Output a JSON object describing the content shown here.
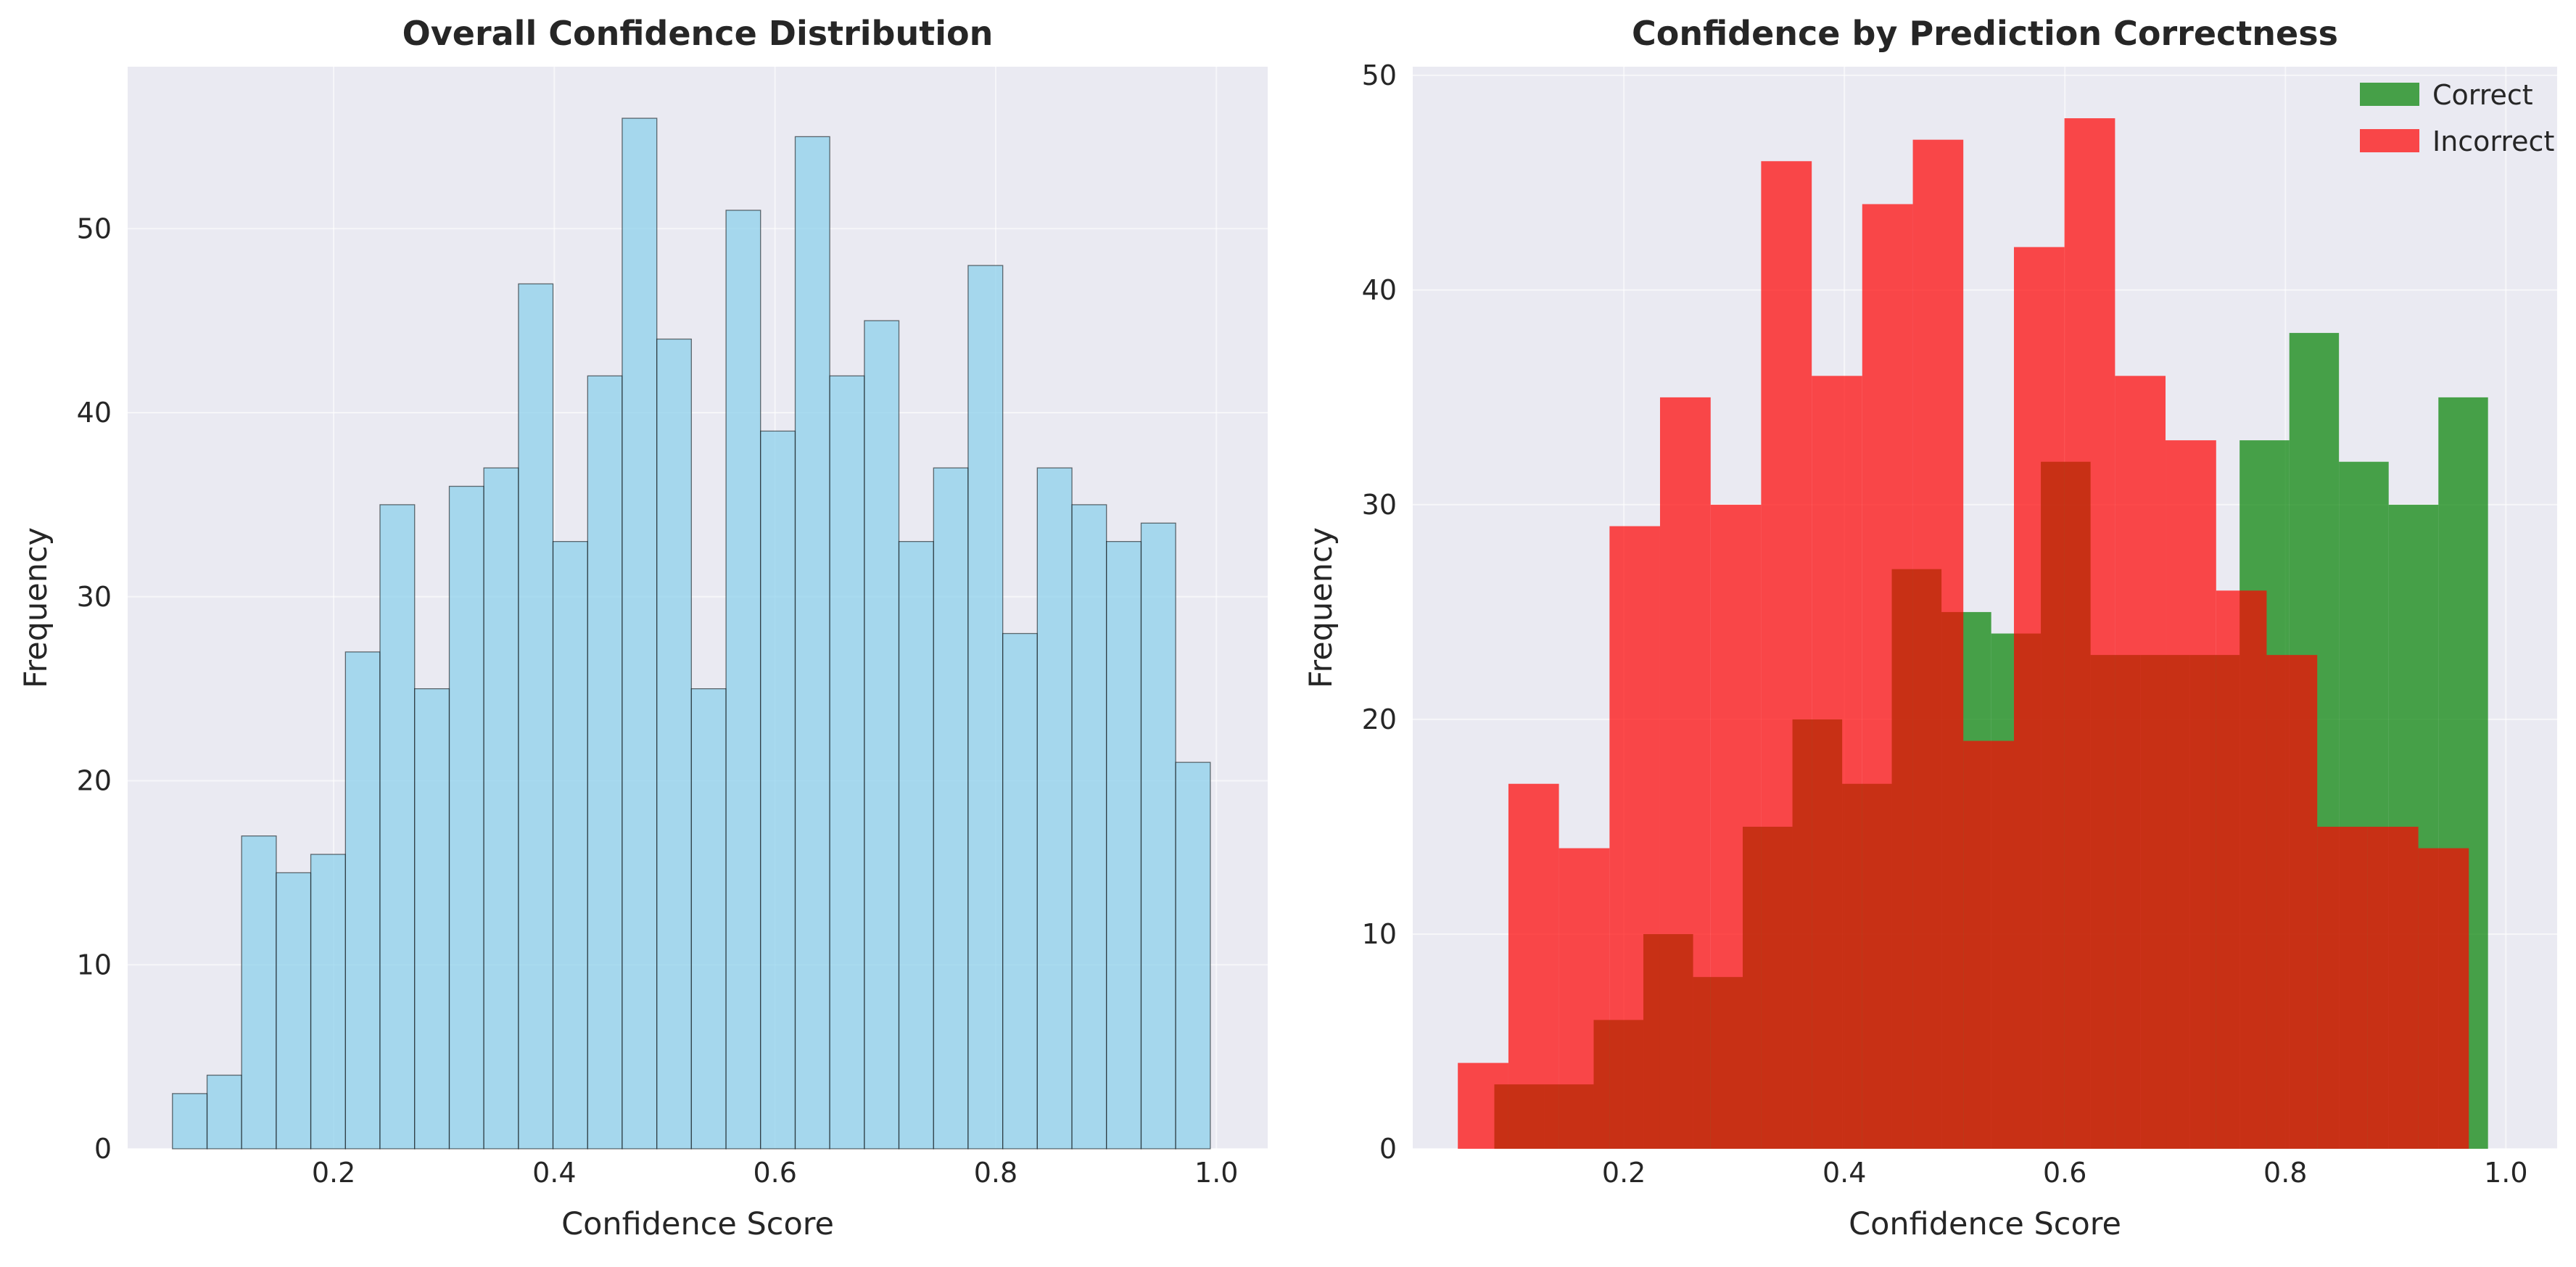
{
  "chart_data": [
    {
      "type": "bar",
      "title": "Overall Confidence Distribution",
      "xlabel": "Confidence Score",
      "ylabel": "Frequency",
      "xlim": [
        0.0133,
        1.0465
      ],
      "ylim": [
        0,
        58.8
      ],
      "xticks": [
        "0.2",
        "0.4",
        "0.6",
        "0.8",
        "1.0"
      ],
      "yticks": [
        "0",
        "10",
        "20",
        "30",
        "40",
        "50"
      ],
      "grid": true,
      "bin_edges": [
        0.0539,
        0.0853,
        0.1166,
        0.148,
        0.1793,
        0.2107,
        0.242,
        0.2734,
        0.3048,
        0.3361,
        0.3675,
        0.3988,
        0.4302,
        0.4615,
        0.4929,
        0.5242,
        0.5556,
        0.5869,
        0.6183,
        0.6496,
        0.681,
        0.7123,
        0.7437,
        0.775,
        0.8064,
        0.8377,
        0.8691,
        0.9004,
        0.9318,
        0.9631,
        0.9945
      ],
      "series": [
        {
          "values": [
            3,
            4,
            17,
            15,
            16,
            27,
            35,
            25,
            36,
            37,
            47,
            33,
            42,
            56,
            44,
            25,
            51,
            39,
            55,
            42,
            45,
            33,
            37,
            48,
            28,
            37,
            35,
            33,
            34,
            21
          ],
          "color": "#87ceeb"
        }
      ]
    },
    {
      "type": "bar",
      "title": "Confidence by Prediction Correctness",
      "xlabel": "Confidence Score",
      "ylabel": "Frequency",
      "xlim": [
        0.0085,
        1.0465
      ],
      "ylim": [
        0,
        50.4
      ],
      "xticks": [
        "0.2",
        "0.4",
        "0.6",
        "0.8",
        "1.0"
      ],
      "yticks": [
        "0",
        "10",
        "20",
        "30",
        "40",
        "50"
      ],
      "grid": true,
      "legend_position": "top-right",
      "series": [
        {
          "name": "Correct",
          "color": "#008000",
          "bin_edges": [
            0.0825,
            0.1276,
            0.1726,
            0.2177,
            0.2628,
            0.3078,
            0.3529,
            0.398,
            0.443,
            0.4881,
            0.5332,
            0.5782,
            0.6233,
            0.6684,
            0.7134,
            0.7585,
            0.8036,
            0.8486,
            0.8937,
            0.9388,
            0.9838
          ],
          "values": [
            3,
            3,
            6,
            10,
            8,
            15,
            20,
            17,
            27,
            25,
            24,
            32,
            23,
            23,
            23,
            33,
            38,
            32,
            30,
            35
          ]
        },
        {
          "name": "Incorrect",
          "color": "#ff0000",
          "bin_edges": [
            0.0494,
            0.0953,
            0.1411,
            0.187,
            0.2328,
            0.2787,
            0.3245,
            0.3704,
            0.4162,
            0.4621,
            0.5079,
            0.5538,
            0.5996,
            0.6455,
            0.6913,
            0.7372,
            0.783,
            0.8289,
            0.8747,
            0.9206,
            0.9664
          ],
          "values": [
            4,
            17,
            14,
            29,
            35,
            30,
            46,
            36,
            44,
            47,
            19,
            42,
            48,
            36,
            33,
            26,
            23,
            15,
            15,
            14
          ]
        }
      ]
    }
  ]
}
